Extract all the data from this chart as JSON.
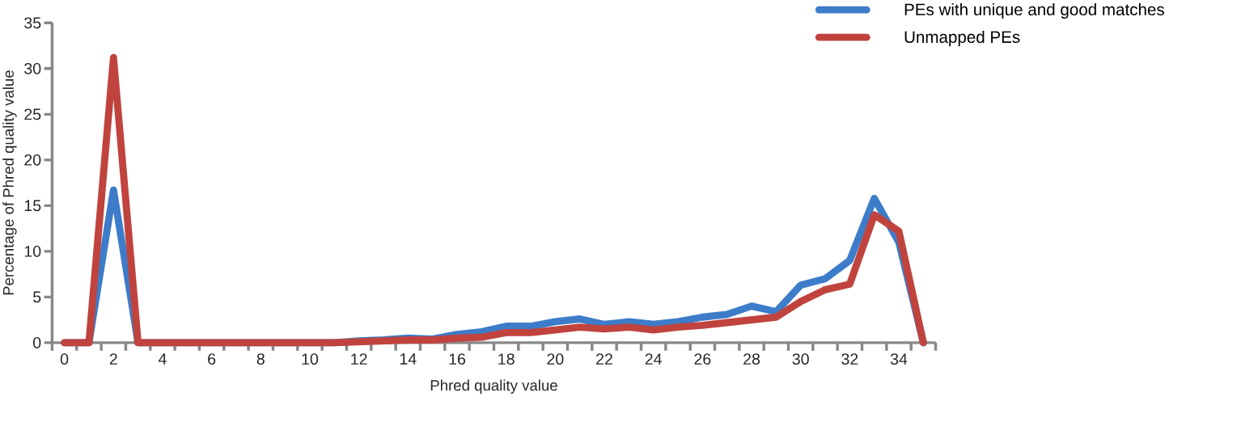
{
  "chart_data": {
    "type": "line",
    "xlabel": "Phred quality value",
    "ylabel": "Percentage of Phred quality value",
    "categories": [
      "0",
      null,
      "2",
      null,
      "4",
      null,
      "6",
      null,
      "8",
      null,
      "10",
      null,
      "12",
      null,
      "14",
      null,
      "16",
      null,
      "18",
      null,
      "20",
      null,
      "22",
      null,
      "24",
      null,
      "26",
      null,
      "28",
      null,
      "30",
      null,
      "32",
      null,
      "34",
      null
    ],
    "ylim": [
      0,
      35
    ],
    "yticks": [
      0,
      5,
      10,
      15,
      20,
      25,
      30,
      35
    ],
    "legend": "top right",
    "grid": false,
    "marker": "none",
    "line_style": "solid",
    "series": [
      {
        "name": "PEs with unique and good matches",
        "color": "#3d7cc9",
        "values": [
          0,
          0,
          16.7,
          0,
          0,
          0,
          0,
          0,
          0,
          0,
          0,
          0,
          0.2,
          0.3,
          0.5,
          0.4,
          0.9,
          1.2,
          1.8,
          1.8,
          2.3,
          2.6,
          2.0,
          2.3,
          2.0,
          2.3,
          2.8,
          3.1,
          4.0,
          3.4,
          6.3,
          7.0,
          9.0,
          15.8,
          11.0,
          0
        ]
      },
      {
        "name": "Unmapped PEs",
        "color": "#c0433e",
        "values": [
          0,
          0,
          31.2,
          0,
          0,
          0,
          0,
          0,
          0,
          0,
          0,
          0,
          0.1,
          0.2,
          0.3,
          0.3,
          0.5,
          0.6,
          1.1,
          1.1,
          1.4,
          1.7,
          1.5,
          1.7,
          1.4,
          1.7,
          1.9,
          2.2,
          2.5,
          2.8,
          4.5,
          5.8,
          6.4,
          14.0,
          12.2,
          0
        ]
      }
    ]
  }
}
